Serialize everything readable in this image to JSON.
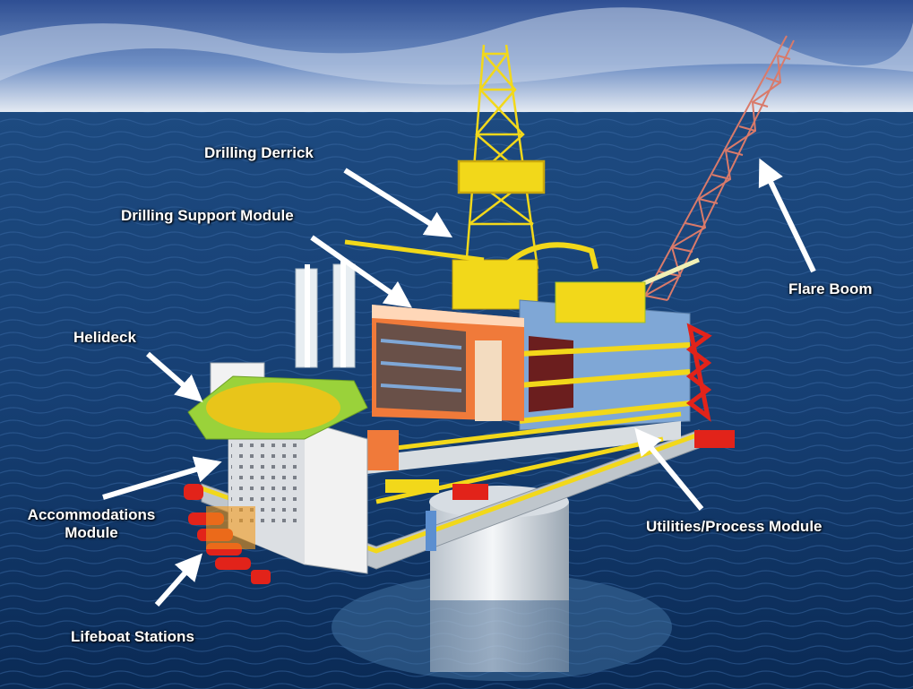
{
  "diagram": {
    "labels": {
      "drilling_derrick": "Drilling Derrick",
      "drilling_support_module": "Drilling Support Module",
      "helideck": "Helideck",
      "accommodations_line1": "Accommodations",
      "accommodations_line2": "Module",
      "lifeboat_stations": "Lifeboat Stations",
      "flare_boom": "Flare Boom",
      "utilities_process_module": "Utilities/Process Module"
    },
    "colors": {
      "sky_top": "#3a5a9a",
      "sky_horizon": "#e8eef5",
      "sea_deep": "#0d2f5c",
      "sea_mid": "#1f4f86",
      "derrick": "#f2d81a",
      "flare_boom": "#d97a6a",
      "helideck_pad": "#e8c51a",
      "helideck_rim": "#9ad23a",
      "process_module": "#f07a3a",
      "lifeboat": "#e2231a",
      "accommodations": "#f2f2f2",
      "steel_blue": "#7fa7d6",
      "column": "#dfe3e6"
    }
  }
}
